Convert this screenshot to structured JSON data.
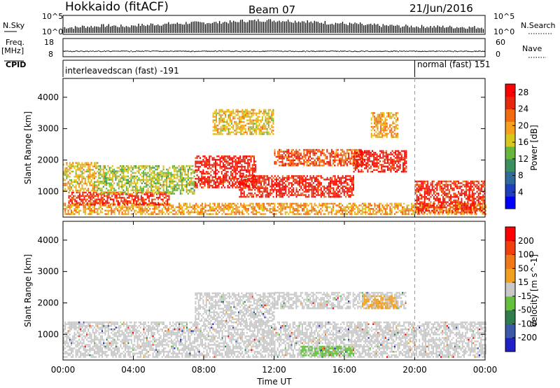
{
  "header": {
    "station": "Hokkaido (fitACF)",
    "beam": "Beam 07",
    "date": "21/Jun/2016"
  },
  "nsky": {
    "label": "N.Sky",
    "tick_top": "10^5",
    "tick_bottom": "10^0",
    "right_label": "N.Search",
    "right_tick_top": "10^5",
    "right_tick_bottom": "10^0"
  },
  "freq": {
    "label_line1": "Freq.",
    "label_line2": "[MHz]",
    "tick_top": "18",
    "tick_bottom": "8",
    "right_label": "Nave",
    "right_tick_top": "60",
    "right_tick_bottom": "0"
  },
  "cpid": {
    "label": "CPID",
    "segment1": "interleavedscan (fast) -191",
    "segment2": "normal (fast) 151"
  },
  "colors": {
    "power_scale": [
      "#0000ff",
      "#1f3fbf",
      "#2e6b9a",
      "#3c8f5e",
      "#69b63c",
      "#d8c81e",
      "#f6a01c",
      "#f26a12",
      "#e8280c",
      "#ff0000"
    ],
    "velocity_scale": [
      "#2020c8",
      "#3a59a8",
      "#2f7d4a",
      "#66c040",
      "#c8c8c8",
      "#f0a020",
      "#f07818",
      "#f04010",
      "#ff0000"
    ],
    "marker": "#999999"
  },
  "chart_data": [
    {
      "type": "heatmap",
      "title": "",
      "ylabel": "Slant Range [km]",
      "ylim": [
        180,
        4600
      ],
      "yticks": [
        "1000",
        "2000",
        "3000",
        "4000"
      ],
      "colorbar_label": "Power [dB]",
      "colorbar_ticks": [
        "4",
        "8",
        "12",
        "16",
        "20",
        "24",
        "28"
      ],
      "colorbar_range": [
        0,
        30
      ],
      "x_range_hours": [
        0,
        24
      ],
      "structures": [
        {
          "x": [
            0,
            24
          ],
          "y": [
            250,
            600
          ],
          "level": 20
        },
        {
          "x": [
            0.3,
            6
          ],
          "y": [
            550,
            950
          ],
          "level": 26
        },
        {
          "x": [
            0,
            2
          ],
          "y": [
            1000,
            1900
          ],
          "level": 18
        },
        {
          "x": [
            2,
            7.5
          ],
          "y": [
            900,
            1800
          ],
          "level": 15
        },
        {
          "x": [
            7.5,
            11
          ],
          "y": [
            1100,
            2100
          ],
          "level": 27
        },
        {
          "x": [
            10,
            16.5
          ],
          "y": [
            800,
            1500
          ],
          "level": 27
        },
        {
          "x": [
            12,
            17
          ],
          "y": [
            1800,
            2300
          ],
          "level": 24
        },
        {
          "x": [
            16.5,
            19.5
          ],
          "y": [
            1600,
            2300
          ],
          "level": 27
        },
        {
          "x": [
            20,
            24
          ],
          "y": [
            300,
            1300
          ],
          "level": 26
        },
        {
          "x": [
            8.5,
            12
          ],
          "y": [
            2800,
            3600
          ],
          "level": 18
        },
        {
          "x": [
            17.5,
            19
          ],
          "y": [
            2700,
            3500
          ],
          "level": 20
        }
      ]
    },
    {
      "type": "heatmap",
      "title": "",
      "ylabel": "Slant Range [km]",
      "xlabel": "Time UT",
      "xticks": [
        "00:00",
        "04:00",
        "08:00",
        "12:00",
        "16:00",
        "20:00",
        "00:00"
      ],
      "ylim": [
        180,
        4600
      ],
      "yticks": [
        "1000",
        "2000",
        "3000",
        "4000"
      ],
      "colorbar_label": "Velocity [m s^-1]",
      "colorbar_ticks": [
        "200",
        "100",
        "50",
        "15",
        "-15",
        "-50",
        "-100",
        "-200"
      ],
      "colorbar_range": [
        -250,
        250
      ],
      "x_range_hours": [
        0,
        24
      ],
      "structures": [
        {
          "x": [
            0,
            24
          ],
          "y": [
            250,
            1400
          ],
          "level": 0
        },
        {
          "x": [
            7.5,
            12
          ],
          "y": [
            1400,
            2300
          ],
          "level": 0
        },
        {
          "x": [
            12,
            19.5
          ],
          "y": [
            1800,
            2300
          ],
          "level": 0
        },
        {
          "x": [
            13.5,
            16.5
          ],
          "y": [
            300,
            600
          ],
          "level": -60
        },
        {
          "x": [
            17,
            19
          ],
          "y": [
            1800,
            2200
          ],
          "level": 40
        }
      ]
    }
  ],
  "nsky_series": [
    2.0,
    2.3,
    2.6,
    2.4,
    2.8,
    3.1,
    3.3,
    3.6,
    3.7,
    3.9,
    4.3,
    4.5,
    4.4,
    4.2,
    3.8,
    3.5,
    3.2,
    2.8,
    2.6,
    2.4,
    2.3,
    2.2,
    2.1,
    2.0
  ],
  "freq_value_mhz": 11.0,
  "cpid_change_hour": 20.0
}
